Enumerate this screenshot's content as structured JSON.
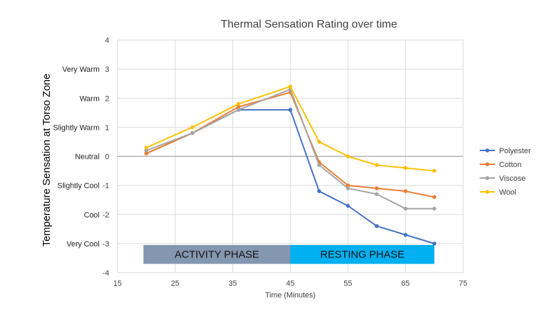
{
  "chart_data": {
    "type": "line",
    "title": "Thermal Sensation Rating over time",
    "xlabel": "Time (Minutes)",
    "ylabel": "Temperature Sensation at Torso Zone",
    "xlim": [
      15,
      75
    ],
    "ylim": [
      -4,
      4
    ],
    "x_ticks": [
      15,
      25,
      35,
      45,
      55,
      65,
      75
    ],
    "y_ticks": [
      -4,
      -3,
      -2,
      -1,
      0,
      1,
      2,
      3,
      4
    ],
    "y_categories": [
      {
        "value": 3,
        "label": "Very Warm"
      },
      {
        "value": 2,
        "label": "Warm"
      },
      {
        "value": 1,
        "label": "Slightly Warm"
      },
      {
        "value": 0,
        "label": "Neutral"
      },
      {
        "value": -1,
        "label": "Slightly Cool"
      },
      {
        "value": -2,
        "label": "Cool"
      },
      {
        "value": -3,
        "label": "Very Cool"
      }
    ],
    "grid": true,
    "legend_position": "right",
    "x": [
      20,
      28,
      36,
      45,
      50,
      55,
      60,
      65,
      70
    ],
    "series": [
      {
        "name": "Polyester",
        "color": "#4472C4",
        "values": [
          0.1,
          0.8,
          1.6,
          1.6,
          -1.2,
          -1.7,
          -2.4,
          -2.7,
          -3.0
        ]
      },
      {
        "name": "Cotton",
        "color": "#ED7D31",
        "values": [
          0.1,
          0.8,
          1.7,
          2.2,
          -0.2,
          -1.0,
          -1.1,
          -1.2,
          -1.4
        ]
      },
      {
        "name": "Viscose",
        "color": "#A5A5A5",
        "values": [
          0.2,
          0.8,
          1.6,
          2.3,
          -0.3,
          -1.1,
          -1.3,
          -1.8,
          -1.8
        ]
      },
      {
        "name": "Wool",
        "color": "#FFC000",
        "values": [
          0.3,
          1.0,
          1.8,
          2.4,
          0.5,
          0.0,
          -0.3,
          -0.4,
          -0.5
        ]
      }
    ],
    "phases": [
      {
        "label": "ACTIVITY PHASE",
        "x_start": 19.5,
        "x_end": 45,
        "y_top": -3.05,
        "y_bottom": -3.7,
        "color": "#8497B0"
      },
      {
        "label": "RESTING PHASE",
        "x_start": 45,
        "x_end": 70,
        "y_top": -3.05,
        "y_bottom": -3.7,
        "color": "#00B0F0"
      }
    ]
  }
}
